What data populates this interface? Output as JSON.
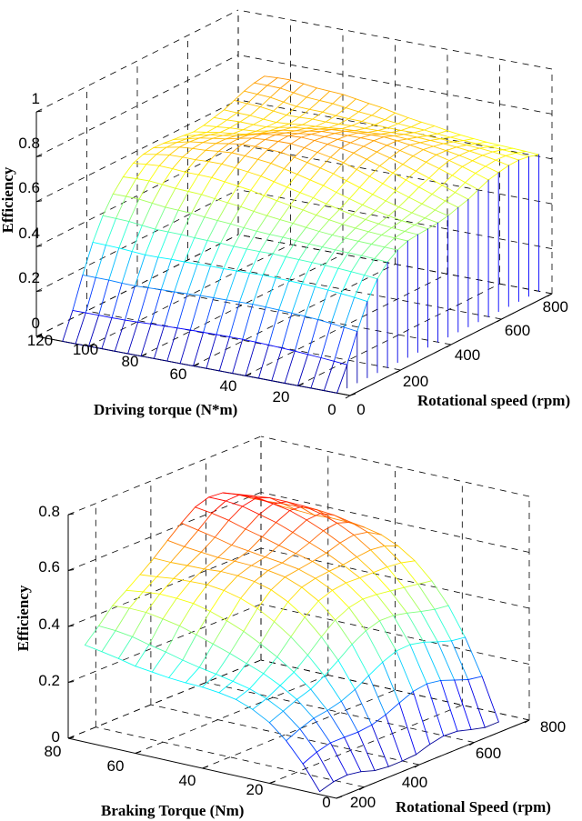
{
  "chart_data": [
    {
      "type": "surface",
      "title": "",
      "xlabel": "Rotational speed (rpm)",
      "ylabel": "Driving torque (N*m)",
      "zlabel": "Efficiency",
      "x_ticks": [
        "0",
        "200",
        "400",
        "600",
        "800"
      ],
      "y_ticks": [
        "0",
        "20",
        "40",
        "60",
        "80",
        "100",
        "120"
      ],
      "z_ticks": [
        "0",
        "0.2",
        "0.4",
        "0.6",
        "0.8",
        "1"
      ],
      "xlim": [
        0,
        800
      ],
      "ylim": [
        0,
        120
      ],
      "zlim": [
        0,
        1
      ],
      "grid": true,
      "colormap": "jet",
      "speed_rpm": [
        0,
        40,
        80,
        120,
        160,
        200,
        240,
        280,
        320,
        360,
        400,
        440,
        480,
        520,
        560,
        600,
        640,
        680,
        720,
        760,
        800
      ],
      "torque_Nm": [
        5,
        10,
        15,
        20,
        25,
        30,
        35,
        40,
        45,
        50,
        55,
        60,
        65,
        70,
        75,
        80,
        85,
        90,
        95,
        100,
        105,
        110
      ],
      "efficiency_at_max_speed": [
        0.7,
        0.72,
        0.74,
        0.76,
        0.78,
        0.8,
        0.82,
        0.84,
        0.86,
        0.87,
        0.88,
        0.89,
        0.9,
        0.9,
        0.9,
        0.9,
        0.89,
        0.88,
        0.88,
        0.88,
        0.87,
        0.86
      ],
      "efficiency_at_max_torque": [
        0.27,
        0.52,
        0.7,
        0.8,
        0.84,
        0.86,
        0.87,
        0.88,
        0.88,
        0.88,
        0.88,
        0.88,
        0.88,
        0.87,
        0.87,
        0.87,
        0.86,
        0.86,
        0.86,
        0.86,
        0.86
      ],
      "peak_efficiency": 0.9
    },
    {
      "type": "surface",
      "title": "",
      "xlabel": "Rotational Speed (rpm)",
      "ylabel": "Braking Torque (Nm)",
      "zlabel": "Efficiency",
      "x_ticks": [
        "200",
        "400",
        "600",
        "800"
      ],
      "y_ticks": [
        "0",
        "20",
        "40",
        "60",
        "80"
      ],
      "z_ticks": [
        "0",
        "0.2",
        "0.4",
        "0.6",
        "0.8"
      ],
      "xlim": [
        100,
        800
      ],
      "ylim": [
        0,
        80
      ],
      "zlim": [
        0,
        0.8
      ],
      "grid": true,
      "colormap": "jet",
      "speed_rpm": [
        100,
        150,
        200,
        250,
        300,
        350,
        400,
        450,
        500,
        550,
        600,
        650,
        700,
        750
      ],
      "torque_Nm": [
        5,
        10,
        15,
        20,
        25,
        30,
        35,
        40,
        45,
        50,
        55,
        60,
        65,
        70,
        75
      ],
      "efficiency_at_min_speed": [
        0.03,
        0.06,
        0.1,
        0.14,
        0.17,
        0.2,
        0.22,
        0.24,
        0.25,
        0.26,
        0.27,
        0.27,
        0.28,
        0.28,
        0.28
      ],
      "efficiency_at_max_torque": [
        0.28,
        0.33,
        0.4,
        0.46,
        0.52,
        0.57,
        0.61,
        0.64,
        0.67,
        0.69,
        0.7,
        0.69,
        0.66,
        0.62
      ],
      "peak_efficiency": 0.74
    }
  ]
}
